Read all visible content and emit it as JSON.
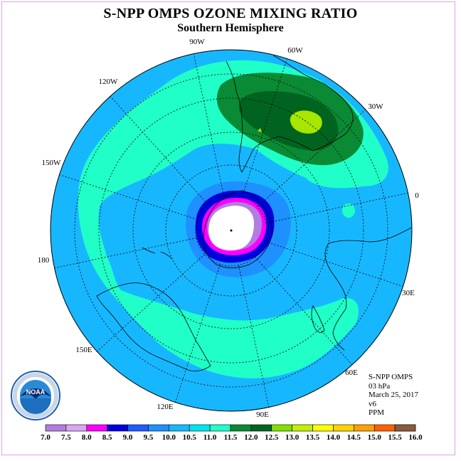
{
  "title": "S-NPP OMPS OZONE MIXING RATIO",
  "subtitle": "Southern Hemisphere",
  "longitude_labels": [
    {
      "text": "90W"
    },
    {
      "text": "60W"
    },
    {
      "text": "30W"
    },
    {
      "text": "0"
    },
    {
      "text": "30E"
    },
    {
      "text": "60E"
    },
    {
      "text": "90E"
    },
    {
      "text": "120E"
    },
    {
      "text": "150E"
    },
    {
      "text": "180"
    },
    {
      "text": "150W"
    },
    {
      "text": "120W"
    }
  ],
  "info": {
    "instrument": "S-NPP OMPS",
    "level": "03 hPa",
    "date": "March 25, 2017",
    "version": "v6",
    "units": "PPM"
  },
  "logo": {
    "text": "NOAA"
  },
  "colorbar": {
    "labels": [
      "7.0",
      "7.5",
      "8.0",
      "8.5",
      "9.0",
      "9.5",
      "10.0",
      "10.5",
      "11.0",
      "11.5",
      "12.0",
      "12.5",
      "13.0",
      "13.5",
      "14.0",
      "14.5",
      "15.0",
      "15.5",
      "16.0"
    ],
    "colors": [
      "#b07ee0",
      "#d8a8f0",
      "#ff00ff",
      "#0000e0",
      "#1e5cff",
      "#1e90ff",
      "#17b7ff",
      "#00e4f0",
      "#20ffc8",
      "#0a8a35",
      "#006420",
      "#80e000",
      "#c0f000",
      "#ffff00",
      "#ffd200",
      "#ffa000",
      "#ff6000",
      "#ff0000",
      "#8b5a3c"
    ]
  },
  "colors": {
    "background_field": "#17b7ff",
    "band": "#20ffc8",
    "high_dark": "#006420",
    "high_mid": "#0a8a35",
    "high_peak": "#a6e600",
    "ring_outer": "#1e90ff",
    "ring_blue": "#0000e0",
    "ring_magenta": "#ff00ff",
    "ring_violet": "#b07ee0",
    "polar_night": "#ffffff"
  }
}
